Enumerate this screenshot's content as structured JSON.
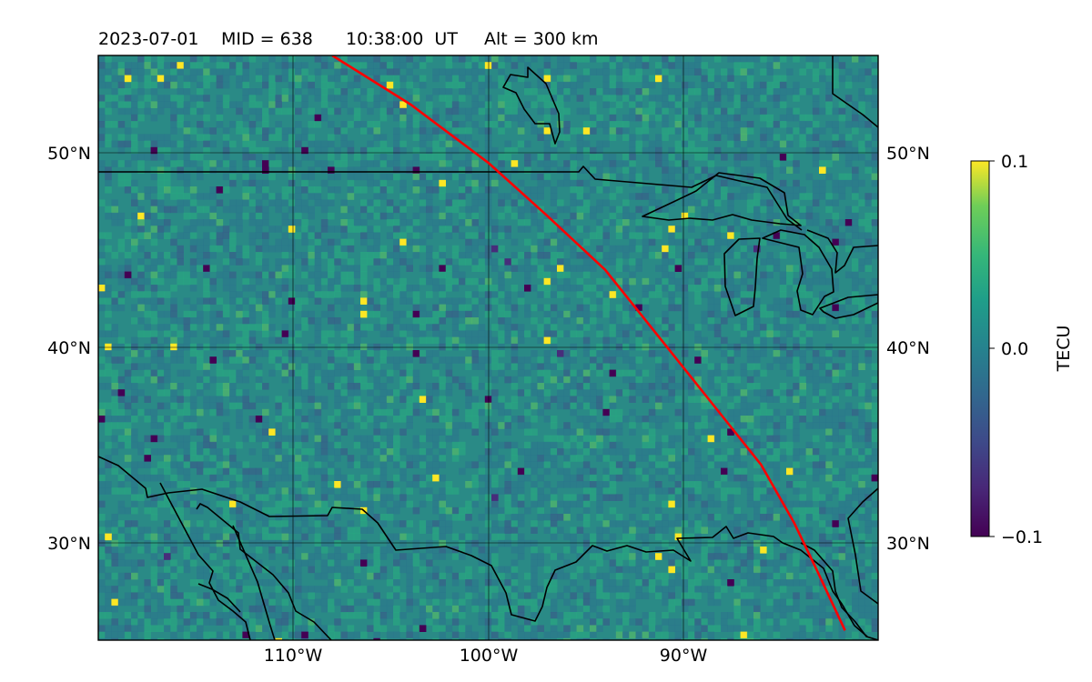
{
  "title": {
    "date": "2023-07-01",
    "mid": "MID = 638",
    "time": "10:38:00  UT",
    "alt": "Alt = 300 km"
  },
  "map": {
    "lon_range": [
      -120,
      -80
    ],
    "lat_range": [
      25,
      55
    ],
    "grid_lons": [
      -110,
      -100,
      -90
    ],
    "grid_lats": [
      30,
      40,
      50
    ],
    "x_tick_labels": [
      "110°W",
      "100°W",
      "90°W"
    ],
    "y_tick_labels": [
      "30°N",
      "40°N",
      "50°N"
    ],
    "colormap": "viridis",
    "satellite_track_color": "#ff0000",
    "satellite_track": [
      [
        -108,
        55
      ],
      [
        -104,
        52.5
      ],
      [
        -100,
        49.5
      ],
      [
        -97,
        46.8
      ],
      [
        -94,
        44
      ],
      [
        -92,
        41.5
      ],
      [
        -90,
        39
      ],
      [
        -88,
        36.5
      ],
      [
        -86,
        34
      ],
      [
        -84.3,
        31
      ],
      [
        -83.1,
        28.5
      ],
      [
        -81.7,
        25.5
      ]
    ]
  },
  "colorbar": {
    "label": "TECU",
    "min": -0.1,
    "max": 0.1,
    "tick_labels": [
      "0.1",
      "0.0",
      "−0.1"
    ]
  }
}
